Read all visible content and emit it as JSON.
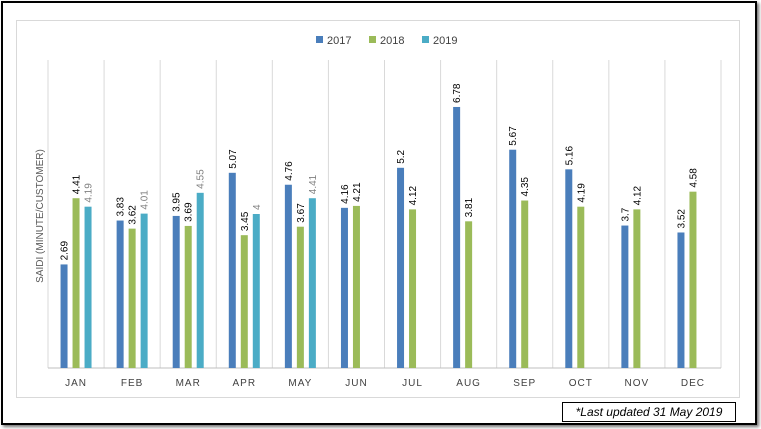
{
  "chart_data": {
    "type": "bar",
    "title": "",
    "xlabel": "",
    "ylabel": "SAIDI (MINUTE/CUSTOMER)",
    "categories": [
      "JAN",
      "FEB",
      "MAR",
      "APR",
      "MAY",
      "JUN",
      "JUL",
      "AUG",
      "SEP",
      "OCT",
      "NOV",
      "DEC"
    ],
    "series": [
      {
        "name": "2017",
        "color": "#4a7ebb",
        "values": [
          2.69,
          3.83,
          3.95,
          5.07,
          4.76,
          4.16,
          5.2,
          6.78,
          5.67,
          5.16,
          3.7,
          3.52
        ]
      },
      {
        "name": "2018",
        "color": "#9bbb59",
        "values": [
          4.41,
          3.62,
          3.69,
          3.45,
          3.67,
          4.21,
          4.12,
          3.81,
          4.35,
          4.19,
          4.12,
          4.58
        ]
      },
      {
        "name": "2019",
        "color": "#4bacc6",
        "values": [
          4.19,
          4.01,
          4.55,
          4,
          4.41,
          null,
          null,
          null,
          null,
          null,
          null,
          null
        ]
      }
    ],
    "ylim": [
      0,
      7.2
    ],
    "grid": "vertical-separators",
    "legend_position": "top"
  },
  "note": "*Last updated 31 May 2019"
}
